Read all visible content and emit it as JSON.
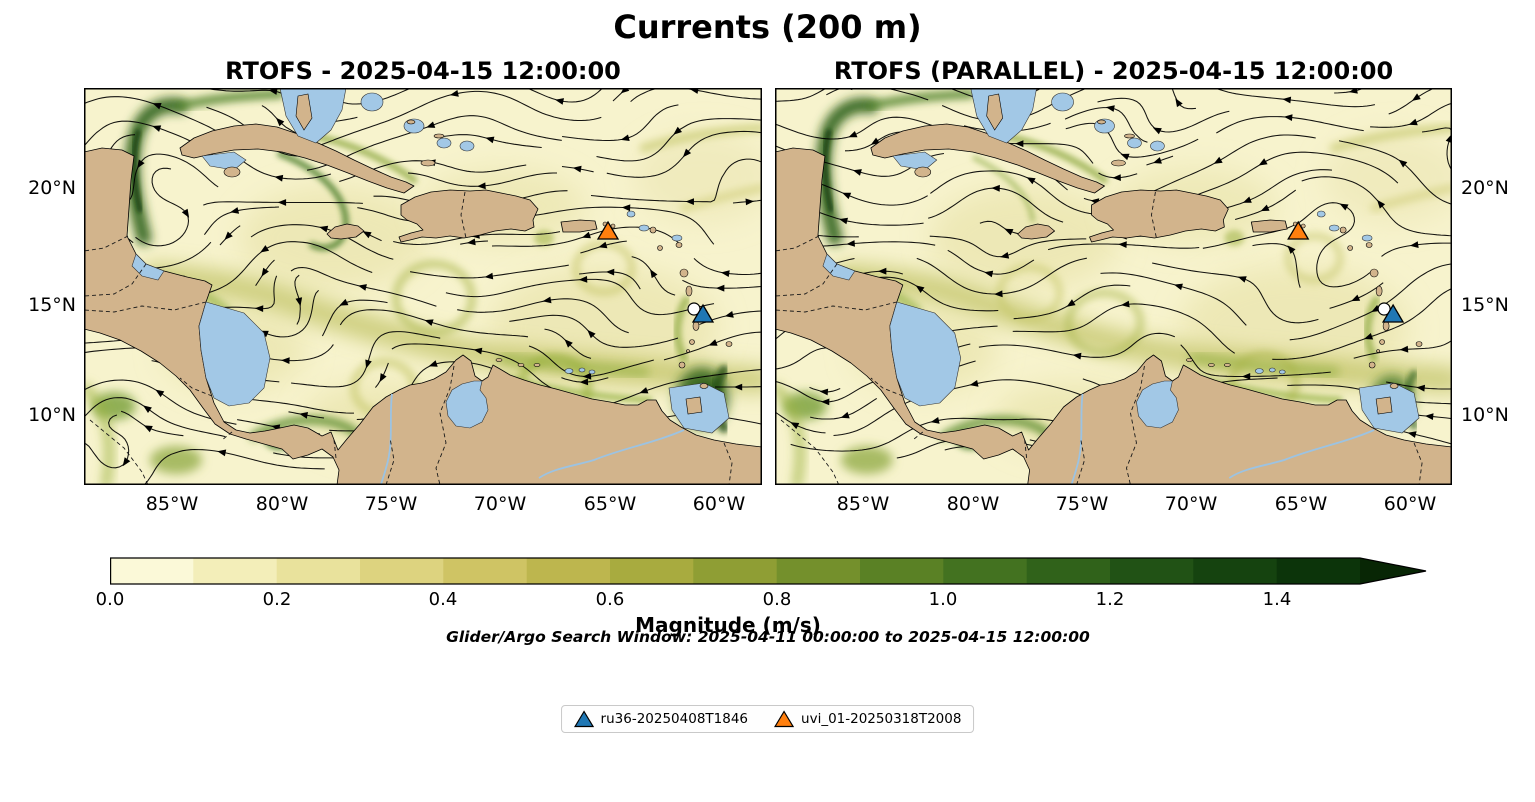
{
  "figure": {
    "title": "Currents (200 m)"
  },
  "panels": [
    {
      "title": "RTOFS - 2025-04-15 12:00:00"
    },
    {
      "title": "RTOFS (PARALLEL) - 2025-04-15 12:00:00"
    }
  ],
  "axes": {
    "x_ticks": [
      "85°W",
      "80°W",
      "75°W",
      "70°W",
      "65°W",
      "60°W"
    ],
    "y_ticks": [
      "20°N",
      "15°N",
      "10°N"
    ]
  },
  "colorbar": {
    "label": "Magnitude (m/s)",
    "ticks": [
      "0.0",
      "0.2",
      "0.4",
      "0.6",
      "0.8",
      "1.0",
      "1.2",
      "1.4"
    ],
    "colors": [
      "#fbf9d8",
      "#f3eeb9",
      "#e9e29c",
      "#ddd37f",
      "#cfc464",
      "#bdb64e",
      "#a8ab3f",
      "#8f9e34",
      "#74902c",
      "#5a8125",
      "#437220",
      "#30621a",
      "#215215",
      "#15430f",
      "#0c340a"
    ],
    "arrow_color": "#082605"
  },
  "annotation": "Glider/Argo Search Window: 2025-04-11 00:00:00 to 2025-04-15 12:00:00",
  "legend": {
    "items": [
      {
        "label": "ru36-20250408T1846",
        "color": "#1f77b4"
      },
      {
        "label": "uvi_01-20250318T2008",
        "color": "#ff7f0e"
      }
    ]
  },
  "markers": [
    {
      "name": "uvi_01-20250318T2008",
      "shape": "triangle",
      "color": "#ff7f0e",
      "x": 524,
      "y": 144
    },
    {
      "name": "argo-float",
      "shape": "circle",
      "color": "#ffffff",
      "x": 610,
      "y": 224
    },
    {
      "name": "ru36-20250408T1846",
      "shape": "triangle",
      "color": "#1f77b4",
      "x": 619,
      "y": 227
    }
  ],
  "map_colors": {
    "land": "#d2b48c",
    "shallow": "#a2c8e6",
    "ocean": "#f7f3cd",
    "coastline": "#000000",
    "river": "#9cc3e2"
  },
  "chart_data": {
    "type": "heatmap",
    "title": "Currents (200 m)",
    "variable": "Ocean current magnitude at 200 m depth with streamline overlay",
    "region": "Caribbean Sea / Gulf of Mexico / Tropical Atlantic",
    "subplots": [
      {
        "title": "RTOFS - 2025-04-15 12:00:00",
        "model": "RTOFS",
        "valid_time": "2025-04-15 12:00:00"
      },
      {
        "title": "RTOFS (PARALLEL) - 2025-04-15 12:00:00",
        "model": "RTOFS (PARALLEL)",
        "valid_time": "2025-04-15 12:00:00"
      }
    ],
    "x_tick_labels": [
      "85°W",
      "80°W",
      "75°W",
      "70°W",
      "65°W",
      "60°W"
    ],
    "y_tick_labels": [
      "20°N",
      "15°N",
      "10°N"
    ],
    "lon_extent_deg_west": [
      89,
      58
    ],
    "lat_extent_deg_north": [
      7,
      24.4
    ],
    "colorbar_label": "Magnitude (m/s)",
    "colorbar_ticks": [
      0.0,
      0.2,
      0.4,
      0.6,
      0.8,
      1.0,
      1.2,
      1.4
    ],
    "colorbar_range": [
      0.0,
      1.5
    ],
    "colorbar_extend": "max",
    "overlays": [
      "black streamlines with arrowheads",
      "tan land mask with coastlines",
      "dashed country borders",
      "glider position markers"
    ],
    "markers": [
      {
        "label": "ru36-20250408T1846",
        "marker": "triangle-up",
        "color": "#1f77b4",
        "approx_lon": "60.7°W",
        "approx_lat": "14.4°N"
      },
      {
        "label": "uvi_01-20250318T2008",
        "marker": "triangle-up",
        "color": "#ff7f0e",
        "approx_lon": "64.9°W",
        "approx_lat": "18.1°N"
      }
    ],
    "annotation": "Glider/Argo Search Window: 2025-04-11 00:00:00 to 2025-04-15 12:00:00"
  }
}
